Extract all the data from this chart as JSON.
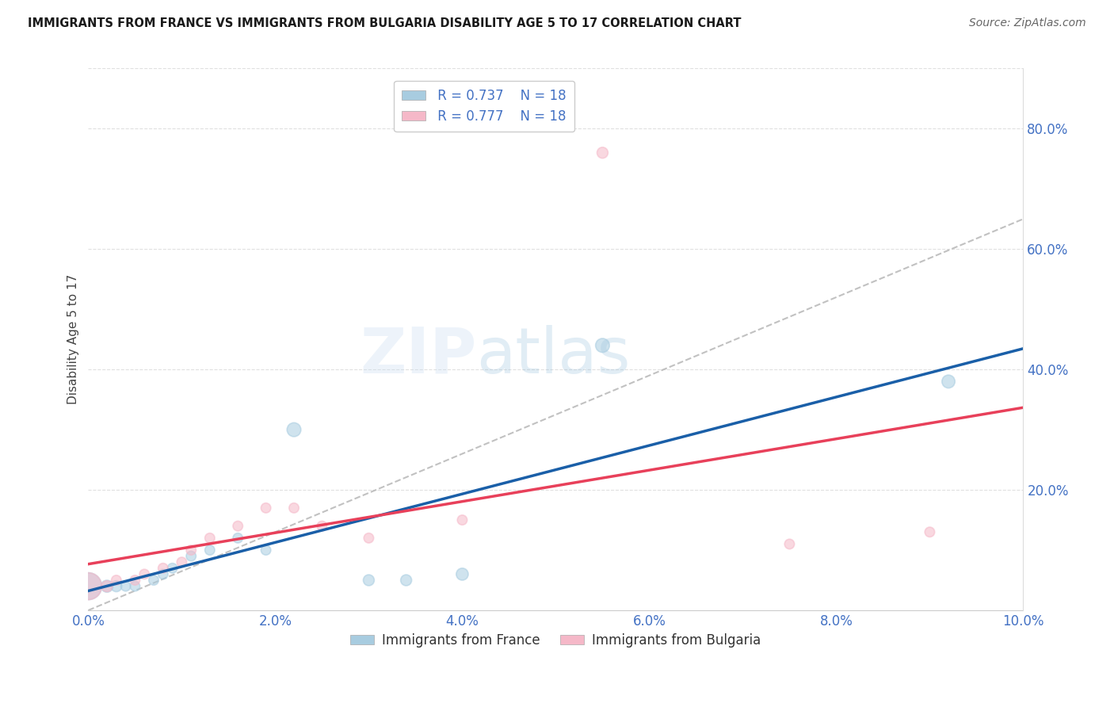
{
  "title": "IMMIGRANTS FROM FRANCE VS IMMIGRANTS FROM BULGARIA DISABILITY AGE 5 TO 17 CORRELATION CHART",
  "source": "Source: ZipAtlas.com",
  "ylabel": "Disability Age 5 to 17",
  "xlabel": "",
  "france_R": 0.737,
  "france_N": 18,
  "bulgaria_R": 0.777,
  "bulgaria_N": 18,
  "france_color": "#a8cce0",
  "france_edge_color": "#a8cce0",
  "france_line_color": "#1a5fa8",
  "bulgaria_color": "#f5b8c8",
  "bulgaria_edge_color": "#f5b8c8",
  "bulgaria_line_color": "#e8405a",
  "dashed_line_color": "#bbbbbb",
  "watermark_color": "#d0e4f5",
  "france_x": [
    0.0,
    0.002,
    0.003,
    0.004,
    0.005,
    0.007,
    0.008,
    0.009,
    0.011,
    0.013,
    0.016,
    0.019,
    0.022,
    0.03,
    0.034,
    0.04,
    0.055,
    0.092
  ],
  "france_y": [
    0.04,
    0.04,
    0.04,
    0.04,
    0.04,
    0.05,
    0.06,
    0.07,
    0.09,
    0.1,
    0.12,
    0.1,
    0.3,
    0.05,
    0.05,
    0.06,
    0.44,
    0.38
  ],
  "france_sizes": [
    600,
    120,
    100,
    80,
    80,
    80,
    80,
    80,
    80,
    80,
    80,
    80,
    160,
    100,
    100,
    120,
    160,
    140
  ],
  "bulgaria_x": [
    0.0,
    0.002,
    0.003,
    0.005,
    0.006,
    0.008,
    0.01,
    0.011,
    0.013,
    0.016,
    0.019,
    0.022,
    0.025,
    0.03,
    0.04,
    0.055,
    0.075,
    0.09
  ],
  "bulgaria_y": [
    0.04,
    0.04,
    0.05,
    0.05,
    0.06,
    0.07,
    0.08,
    0.1,
    0.12,
    0.14,
    0.17,
    0.17,
    0.14,
    0.12,
    0.15,
    0.76,
    0.11,
    0.13
  ],
  "bulgaria_sizes": [
    600,
    100,
    80,
    80,
    80,
    80,
    80,
    80,
    80,
    80,
    80,
    80,
    80,
    80,
    80,
    100,
    80,
    80
  ],
  "xlim": [
    0.0,
    0.1
  ],
  "ylim": [
    0.0,
    0.9
  ],
  "xticks": [
    0.0,
    0.02,
    0.04,
    0.06,
    0.08,
    0.1
  ],
  "right_yticks": [
    0.2,
    0.4,
    0.6,
    0.8
  ],
  "right_ytick_labels": [
    "20.0%",
    "40.0%",
    "60.0%",
    "80.0%"
  ],
  "xtick_labels": [
    "0.0%",
    "2.0%",
    "4.0%",
    "6.0%",
    "8.0%",
    "10.0%"
  ],
  "background_color": "#ffffff",
  "grid_color": "#e0e0e0"
}
